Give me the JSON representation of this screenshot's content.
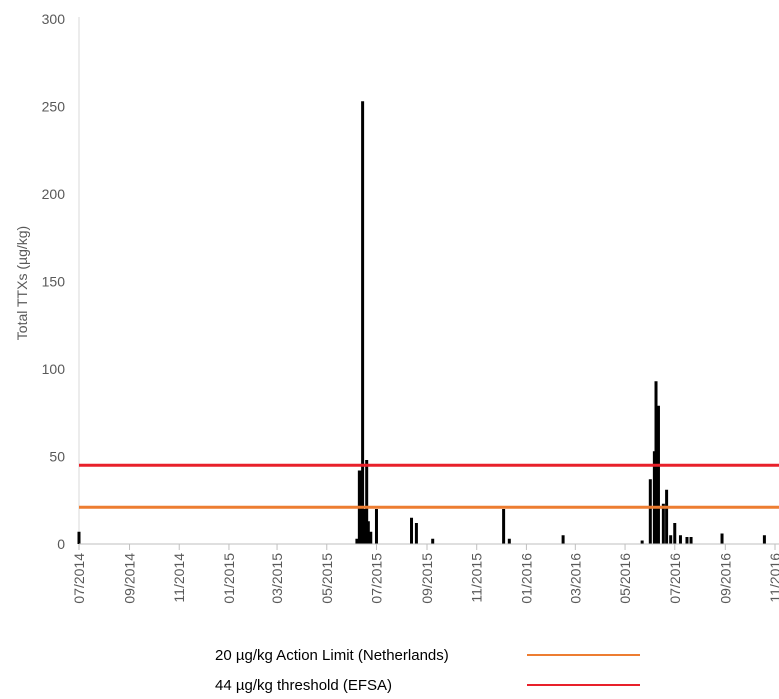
{
  "chart_data": {
    "type": "bar",
    "ylabel": "Total TTXs (µg/kg)",
    "xlabel": "",
    "ylim": [
      0,
      300
    ],
    "y_ticks": [
      0,
      50,
      100,
      150,
      200,
      250,
      300
    ],
    "x_range": [
      "2014-07-01",
      "2016-11-01"
    ],
    "x_tick_dates": [
      "2014-07-01",
      "2014-09-01",
      "2014-11-01",
      "2015-01-01",
      "2015-03-01",
      "2015-05-01",
      "2015-07-01",
      "2015-09-01",
      "2015-11-01",
      "2016-01-01",
      "2016-03-01",
      "2016-05-01",
      "2016-07-01",
      "2016-09-01",
      "2016-11-01"
    ],
    "x_tick_labels": [
      "07/2014",
      "09/2014",
      "11/2014",
      "01/2015",
      "03/2015",
      "05/2015",
      "07/2015",
      "09/2015",
      "11/2015",
      "01/2016",
      "03/2016",
      "05/2016",
      "07/2016",
      "09/2016",
      "11/2016"
    ],
    "grid": false,
    "bar_color": "#000000",
    "series": [
      {
        "points": [
          {
            "x": "2014-07-01",
            "y": 7
          },
          {
            "x": "2015-06-07",
            "y": 3
          },
          {
            "x": "2015-06-10",
            "y": 42
          },
          {
            "x": "2015-06-12",
            "y": 42
          },
          {
            "x": "2015-06-14",
            "y": 253
          },
          {
            "x": "2015-06-17",
            "y": 20
          },
          {
            "x": "2015-06-19",
            "y": 48
          },
          {
            "x": "2015-06-21",
            "y": 13
          },
          {
            "x": "2015-06-24",
            "y": 7
          },
          {
            "x": "2015-07-01",
            "y": 20
          },
          {
            "x": "2015-08-13",
            "y": 15
          },
          {
            "x": "2015-08-19",
            "y": 12
          },
          {
            "x": "2015-09-08",
            "y": 3
          },
          {
            "x": "2015-12-04",
            "y": 20
          },
          {
            "x": "2015-12-11",
            "y": 3
          },
          {
            "x": "2016-02-15",
            "y": 5
          },
          {
            "x": "2016-05-22",
            "y": 2
          },
          {
            "x": "2016-06-01",
            "y": 37
          },
          {
            "x": "2016-06-06",
            "y": 53
          },
          {
            "x": "2016-06-08",
            "y": 93
          },
          {
            "x": "2016-06-11",
            "y": 79
          },
          {
            "x": "2016-06-17",
            "y": 23
          },
          {
            "x": "2016-06-21",
            "y": 31
          },
          {
            "x": "2016-06-26",
            "y": 5
          },
          {
            "x": "2016-07-01",
            "y": 12
          },
          {
            "x": "2016-07-08",
            "y": 5
          },
          {
            "x": "2016-07-16",
            "y": 4
          },
          {
            "x": "2016-07-21",
            "y": 4
          },
          {
            "x": "2016-08-28",
            "y": 6
          },
          {
            "x": "2016-10-19",
            "y": 5
          }
        ]
      }
    ],
    "reference_lines": [
      {
        "label": "20 µg/kg Action Limit (Netherlands)",
        "y": 21,
        "color": "#ED7D31"
      },
      {
        "label": "44 µg/kg threshold (EFSA)",
        "y": 45,
        "color": "#E8202A"
      }
    ],
    "legend_position": "bottom"
  }
}
